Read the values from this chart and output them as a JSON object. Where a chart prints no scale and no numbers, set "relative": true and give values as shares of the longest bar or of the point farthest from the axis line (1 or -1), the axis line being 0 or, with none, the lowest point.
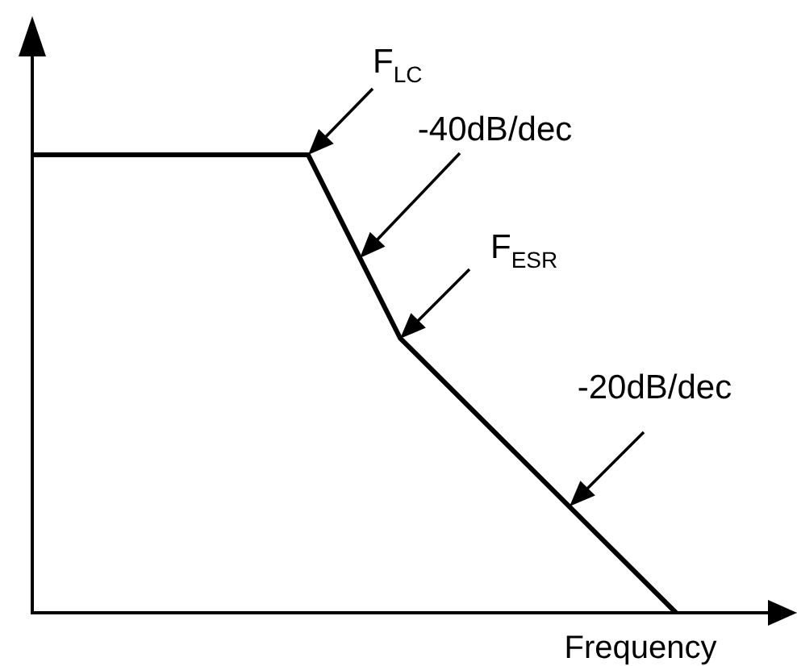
{
  "chart_data": {
    "type": "line",
    "xlabel": "Frequency",
    "categories": [
      null,
      null,
      null,
      null,
      null,
      null,
      null,
      null,
      null
    ],
    "series": [
      {
        "color": "#000000",
        "values": [
          1,
          1,
          1,
          1,
          0.6,
          0.4,
          0.2,
          0,
          null
        ]
      }
    ],
    "relative": true,
    "marker": "none",
    "grid": false,
    "legend": false,
    "annotations": [
      "F$_{LC}$",
      "-40dB/dec",
      "F$_{ESR}$",
      "-20dB/dec"
    ]
  }
}
